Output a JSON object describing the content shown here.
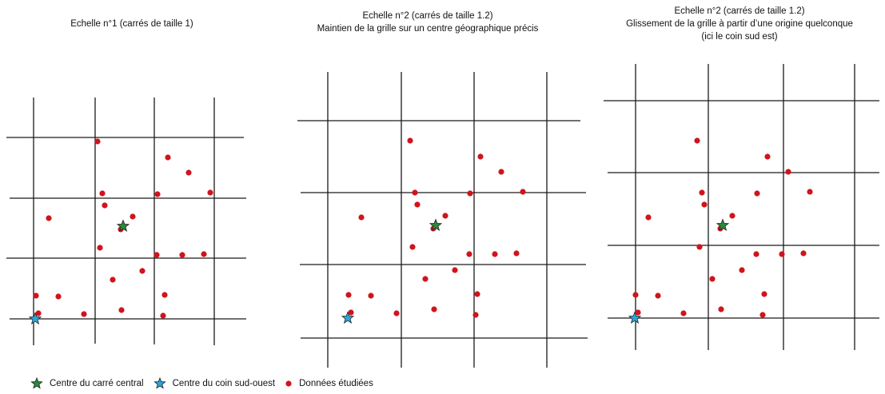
{
  "titles": {
    "panel1": [
      "Echelle n°1 (carrés de taille 1)"
    ],
    "panel2": [
      "Echelle n°2 (carrés de taille 1.2)",
      "Maintien de la grille sur un centre géographique précis"
    ],
    "panel3": [
      "Echelle n°2 (carrés de taille 1.2)",
      "Glissement de la grille à partir d’une origine quelconque",
      "(ici le coin sud est)"
    ]
  },
  "legend": {
    "central": "Centre du carré central",
    "southwest": "Centre du coin sud-ouest",
    "data": "Données étudiées"
  },
  "colors": {
    "grid": "#1a1a1a",
    "data_point": "#d0141c",
    "central_star": "#2a8a3c",
    "southwest_star": "#2aa6dc"
  },
  "icons": {
    "central": "green-star-icon",
    "southwest": "blue-star-icon",
    "data": "red-dot-icon"
  },
  "points": [
    [
      122,
      177
    ],
    [
      210,
      197
    ],
    [
      236,
      216
    ],
    [
      128,
      242
    ],
    [
      197,
      243
    ],
    [
      263,
      241
    ],
    [
      131,
      257
    ],
    [
      61,
      273
    ],
    [
      166,
      271
    ],
    [
      151,
      287
    ],
    [
      125,
      310
    ],
    [
      196,
      319
    ],
    [
      228,
      319
    ],
    [
      255,
      318
    ],
    [
      178,
      339
    ],
    [
      141,
      350
    ],
    [
      45,
      370
    ],
    [
      73,
      371
    ],
    [
      206,
      369
    ],
    [
      152,
      388
    ],
    [
      48,
      392
    ],
    [
      105,
      393
    ],
    [
      204,
      395
    ]
  ],
  "central_star": [
    154,
    283
  ],
  "southwest_star": [
    44,
    399
  ]
}
